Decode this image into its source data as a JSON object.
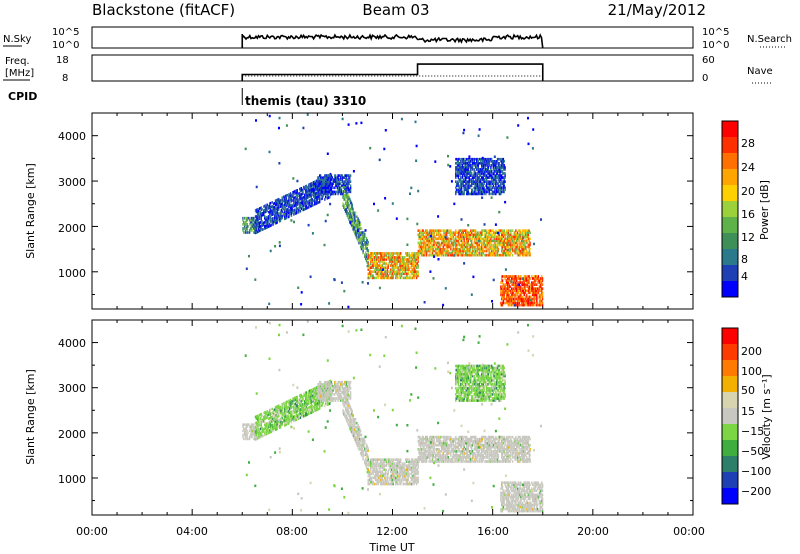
{
  "header": {
    "station": "Blackstone (fitACF)",
    "beam": "Beam 03",
    "date": "21/May/2012"
  },
  "top_panels": {
    "nsky_label": "N.Sky",
    "nsky_ticks": [
      "10^5",
      "10^0"
    ],
    "nsearch_label": "N.Search",
    "freq_label_1": "Freq.",
    "freq_label_2": "[MHz]",
    "freq_ticks": [
      "18",
      "8"
    ],
    "nave_label": "Nave",
    "nave_ticks": [
      "60",
      "0"
    ],
    "cpid_label": "CPID",
    "cpid_text": "themis (tau) 3310"
  },
  "power_panel": {
    "ylabel": "Slant Range [km]",
    "yticks": [
      "4000",
      "3000",
      "2000",
      "1000"
    ],
    "colorbar_label": "Power [dB]",
    "colorbar_ticks": [
      "28",
      "24",
      "20",
      "16",
      "12",
      "8",
      "4"
    ],
    "colors": [
      "#0000ff",
      "#1e40b4",
      "#2a7a8c",
      "#3f8f58",
      "#5fb24a",
      "#9bd23c",
      "#ffd000",
      "#ffa500",
      "#ff7000",
      "#ff3000",
      "#ff0000"
    ]
  },
  "velocity_panel": {
    "ylabel": "Slant Range [km]",
    "yticks": [
      "4000",
      "3000",
      "2000",
      "1000"
    ],
    "colorbar_label": "Velocity [m s⁻¹]",
    "colorbar_ticks": [
      "200",
      "100",
      "50",
      "15",
      "−15",
      "−50",
      "−100",
      "−200"
    ],
    "colors": [
      "#0000ff",
      "#1e40b4",
      "#2e7f6a",
      "#3fae3f",
      "#7cd644",
      "#c8c8c0",
      "#d8d4b0",
      "#f4b000",
      "#ff7a00",
      "#ff3c00",
      "#ff0000"
    ]
  },
  "xaxis": {
    "label": "Time UT",
    "ticks": [
      "00:00",
      "04:00",
      "08:00",
      "12:00",
      "16:00",
      "20:00",
      "00:00"
    ]
  },
  "chart_data": {
    "type": "heatmap",
    "title": "Blackstone (fitACF)",
    "subtitle": "Beam 03",
    "date": "21/May/2012",
    "xlabel": "Time UT",
    "ylabel": "Slant Range [km]",
    "xlim_hours": [
      0,
      24
    ],
    "ylim_km": [
      180,
      4500
    ],
    "operating_interval_hours": [
      6.0,
      18.0
    ],
    "cpid": "themis (tau) 3310",
    "frequency_mhz": [
      {
        "from": 6.0,
        "to": 13.0,
        "value": 10.5
      },
      {
        "from": 13.0,
        "to": 18.0,
        "value": 14.5
      }
    ],
    "nave": 0,
    "power_colorbar_db": [
      4,
      8,
      12,
      16,
      20,
      24,
      28
    ],
    "velocity_colorbar_ms": [
      200,
      100,
      50,
      15,
      -15,
      -50,
      -100,
      -200
    ],
    "scatter_regions": [
      {
        "t_start": 6.0,
        "t_end": 6.6,
        "r_low": 1850,
        "r_high": 2200,
        "power": "mid",
        "velocity": "ground"
      },
      {
        "t_start": 6.5,
        "t_end": 9.5,
        "r_low": 2100,
        "r_high": 2900,
        "power": "low",
        "velocity": "low"
      },
      {
        "t_start": 9.0,
        "t_end": 10.3,
        "r_low": 2700,
        "r_high": 3150,
        "power": "low",
        "velocity": "ground"
      },
      {
        "t_start": 10.0,
        "t_end": 11.0,
        "r_low": 1400,
        "r_high": 2700,
        "power": "mid",
        "velocity": "ground"
      },
      {
        "t_start": 11.0,
        "t_end": 13.0,
        "r_low": 850,
        "r_high": 1400,
        "power": "high",
        "velocity": "ground"
      },
      {
        "t_start": 13.0,
        "t_end": 17.5,
        "r_low": 1350,
        "r_high": 1900,
        "power": "high",
        "velocity": "ground"
      },
      {
        "t_start": 14.5,
        "t_end": 16.5,
        "r_low": 2700,
        "r_high": 3500,
        "power": "low",
        "velocity": "low"
      },
      {
        "t_start": 16.3,
        "t_end": 18.0,
        "r_low": 250,
        "r_high": 900,
        "power": "very-high",
        "velocity": "ground"
      }
    ]
  }
}
